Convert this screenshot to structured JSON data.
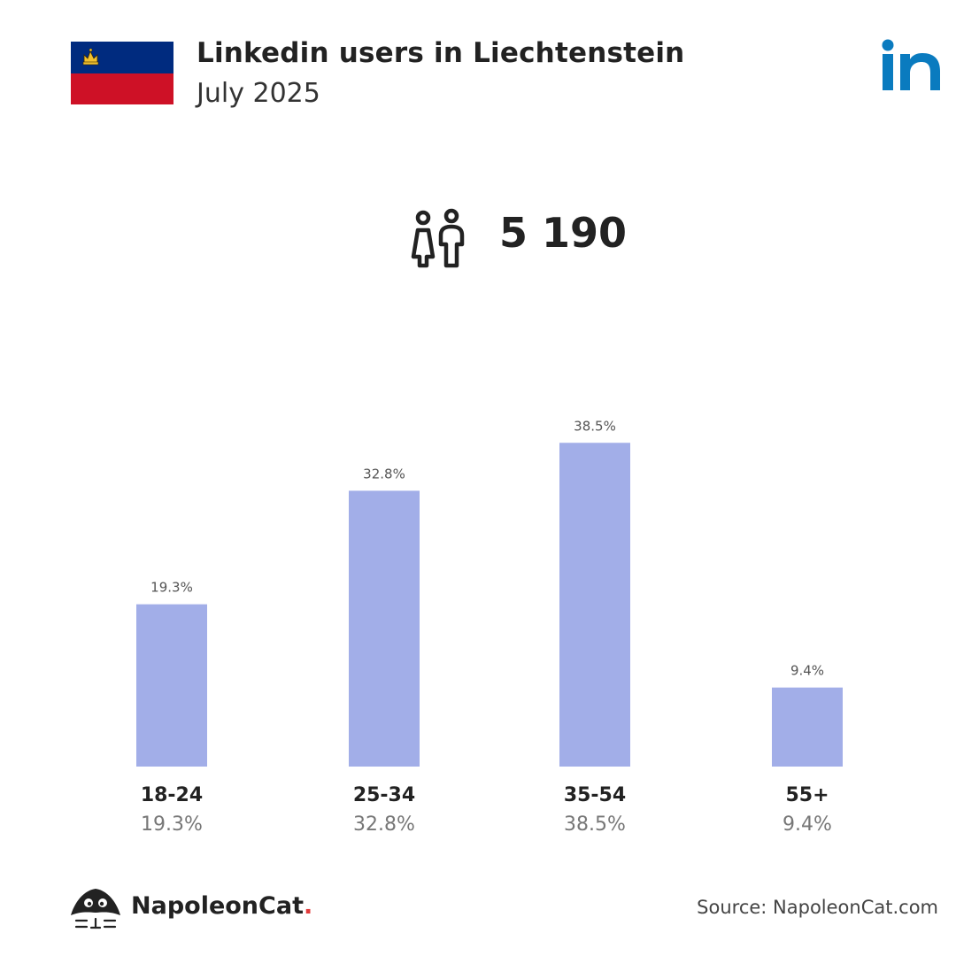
{
  "header": {
    "title": "Linkedin users in Liechtenstein",
    "subtitle": "July 2025",
    "flag_icon": "liechtenstein-flag-icon",
    "brand_icon": "linkedin-icon"
  },
  "summary": {
    "total_users": "5 190",
    "icon": "users-icon"
  },
  "chart_data": {
    "type": "bar",
    "categories": [
      "18-24",
      "25-34",
      "35-54",
      "55+"
    ],
    "values": [
      19.3,
      32.8,
      38.5,
      9.4
    ],
    "value_labels": [
      "19.3%",
      "32.8%",
      "38.5%",
      "9.4%"
    ],
    "ylim": [
      0,
      40
    ],
    "grid": false,
    "bar_color": "#a2aee8"
  },
  "footer": {
    "brand": "NapoleonCat",
    "brand_dot": ".",
    "source": "Source: NapoleonCat.com"
  },
  "colors": {
    "linkedin_blue": "#0a7bbf",
    "flag_blue": "#002b7f",
    "flag_red": "#ce1126",
    "crown_gold": "#f2c12e"
  }
}
